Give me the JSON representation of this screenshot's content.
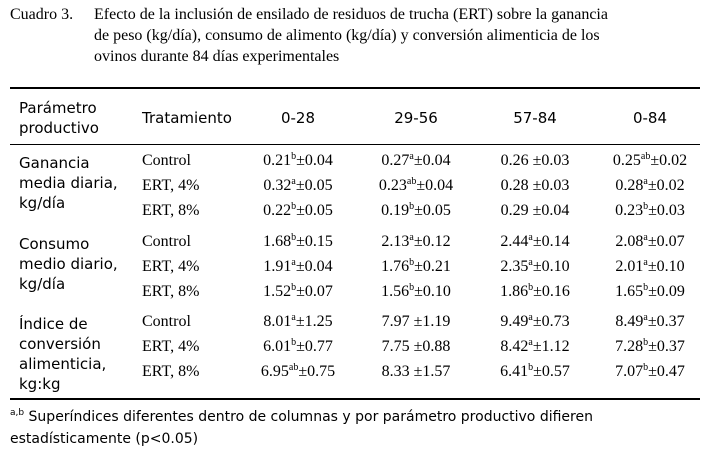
{
  "caption": {
    "label": "Cuadro 3.",
    "text": "Efecto de la inclusión de ensilado de residuos de trucha (ERT) sobre la ganancia\nde peso (kg/día), consumo de alimento (kg/día) y conversión alimenticia de los\novinos durante 84 días experimentales"
  },
  "header": {
    "param": "Parámetro\nproductivo",
    "treatment": "Tratamiento",
    "periods": [
      "0-28",
      "29-56",
      "57-84",
      "0-84"
    ]
  },
  "groups": [
    {
      "param": "Ganancia\nmedia diaria,\nkg/día",
      "rows": [
        {
          "treatment": "Control",
          "cells": [
            {
              "v": "0.21",
              "s": "b",
              "e": "±0.04"
            },
            {
              "v": "0.27",
              "s": "a",
              "e": "±0.04"
            },
            {
              "v": "0.26",
              "s": "",
              "e": "±0.03"
            },
            {
              "v": "0.25",
              "s": "ab",
              "e": "±0.02"
            }
          ]
        },
        {
          "treatment": "ERT, 4%",
          "cells": [
            {
              "v": "0.32",
              "s": "a",
              "e": "±0.05"
            },
            {
              "v": "0.23",
              "s": "ab",
              "e": "±0.04"
            },
            {
              "v": "0.28",
              "s": "",
              "e": "±0.03"
            },
            {
              "v": "0.28",
              "s": "a",
              "e": "±0.02"
            }
          ]
        },
        {
          "treatment": "ERT, 8%",
          "cells": [
            {
              "v": "0.22",
              "s": "b",
              "e": "±0.05"
            },
            {
              "v": "0.19",
              "s": "b",
              "e": "±0.05"
            },
            {
              "v": "0.29",
              "s": "",
              "e": "±0.04"
            },
            {
              "v": "0.23",
              "s": "b",
              "e": "±0.03"
            }
          ]
        }
      ]
    },
    {
      "param": "Consumo\nmedio diario,\nkg/día",
      "rows": [
        {
          "treatment": "Control",
          "cells": [
            {
              "v": "1.68",
              "s": "b",
              "e": "±0.15"
            },
            {
              "v": "2.13",
              "s": "a",
              "e": "±0.12"
            },
            {
              "v": "2.44",
              "s": "a",
              "e": "±0.14"
            },
            {
              "v": "2.08",
              "s": "a",
              "e": "±0.07"
            }
          ]
        },
        {
          "treatment": "ERT, 4%",
          "cells": [
            {
              "v": "1.91",
              "s": "a",
              "e": "±0.04"
            },
            {
              "v": "1.76",
              "s": "b",
              "e": "±0.21"
            },
            {
              "v": "2.35",
              "s": "a",
              "e": "±0.10"
            },
            {
              "v": "2.01",
              "s": "a",
              "e": "±0.10"
            }
          ]
        },
        {
          "treatment": "ERT, 8%",
          "cells": [
            {
              "v": "1.52",
              "s": "b",
              "e": "±0.07"
            },
            {
              "v": "1.56",
              "s": "b",
              "e": "±0.10"
            },
            {
              "v": "1.86",
              "s": "b",
              "e": "±0.16"
            },
            {
              "v": "1.65",
              "s": "b",
              "e": "±0.09"
            }
          ]
        }
      ]
    },
    {
      "param": "Índice de\nconversión\nalimenticia,\nkg:kg",
      "rows": [
        {
          "treatment": "Control",
          "cells": [
            {
              "v": "8.01",
              "s": "a",
              "e": "±1.25"
            },
            {
              "v": "7.97",
              "s": "",
              "e": "±1.19"
            },
            {
              "v": "9.49",
              "s": "a",
              "e": "±0.73"
            },
            {
              "v": "8.49",
              "s": "a",
              "e": "±0.37"
            }
          ]
        },
        {
          "treatment": "ERT, 4%",
          "cells": [
            {
              "v": "6.01",
              "s": "b",
              "e": "±0.77"
            },
            {
              "v": "7.75",
              "s": "",
              "e": "±0.88"
            },
            {
              "v": "8.42",
              "s": "a",
              "e": "±1.12"
            },
            {
              "v": "7.28",
              "s": "b",
              "e": "±0.37"
            }
          ]
        },
        {
          "treatment": "ERT, 8%",
          "cells": [
            {
              "v": "6.95",
              "s": "ab",
              "e": "±0.75"
            },
            {
              "v": "8.33",
              "s": "",
              "e": "±1.57"
            },
            {
              "v": "6.41",
              "s": "b",
              "e": "±0.57"
            },
            {
              "v": "7.07",
              "s": "b",
              "e": "±0.47"
            }
          ]
        }
      ]
    }
  ],
  "footnote": {
    "sup": "a,b",
    "text": " Superíndices diferentes dentro de columnas y por parámetro productivo difieren estadísticamente (p<0.05)"
  }
}
